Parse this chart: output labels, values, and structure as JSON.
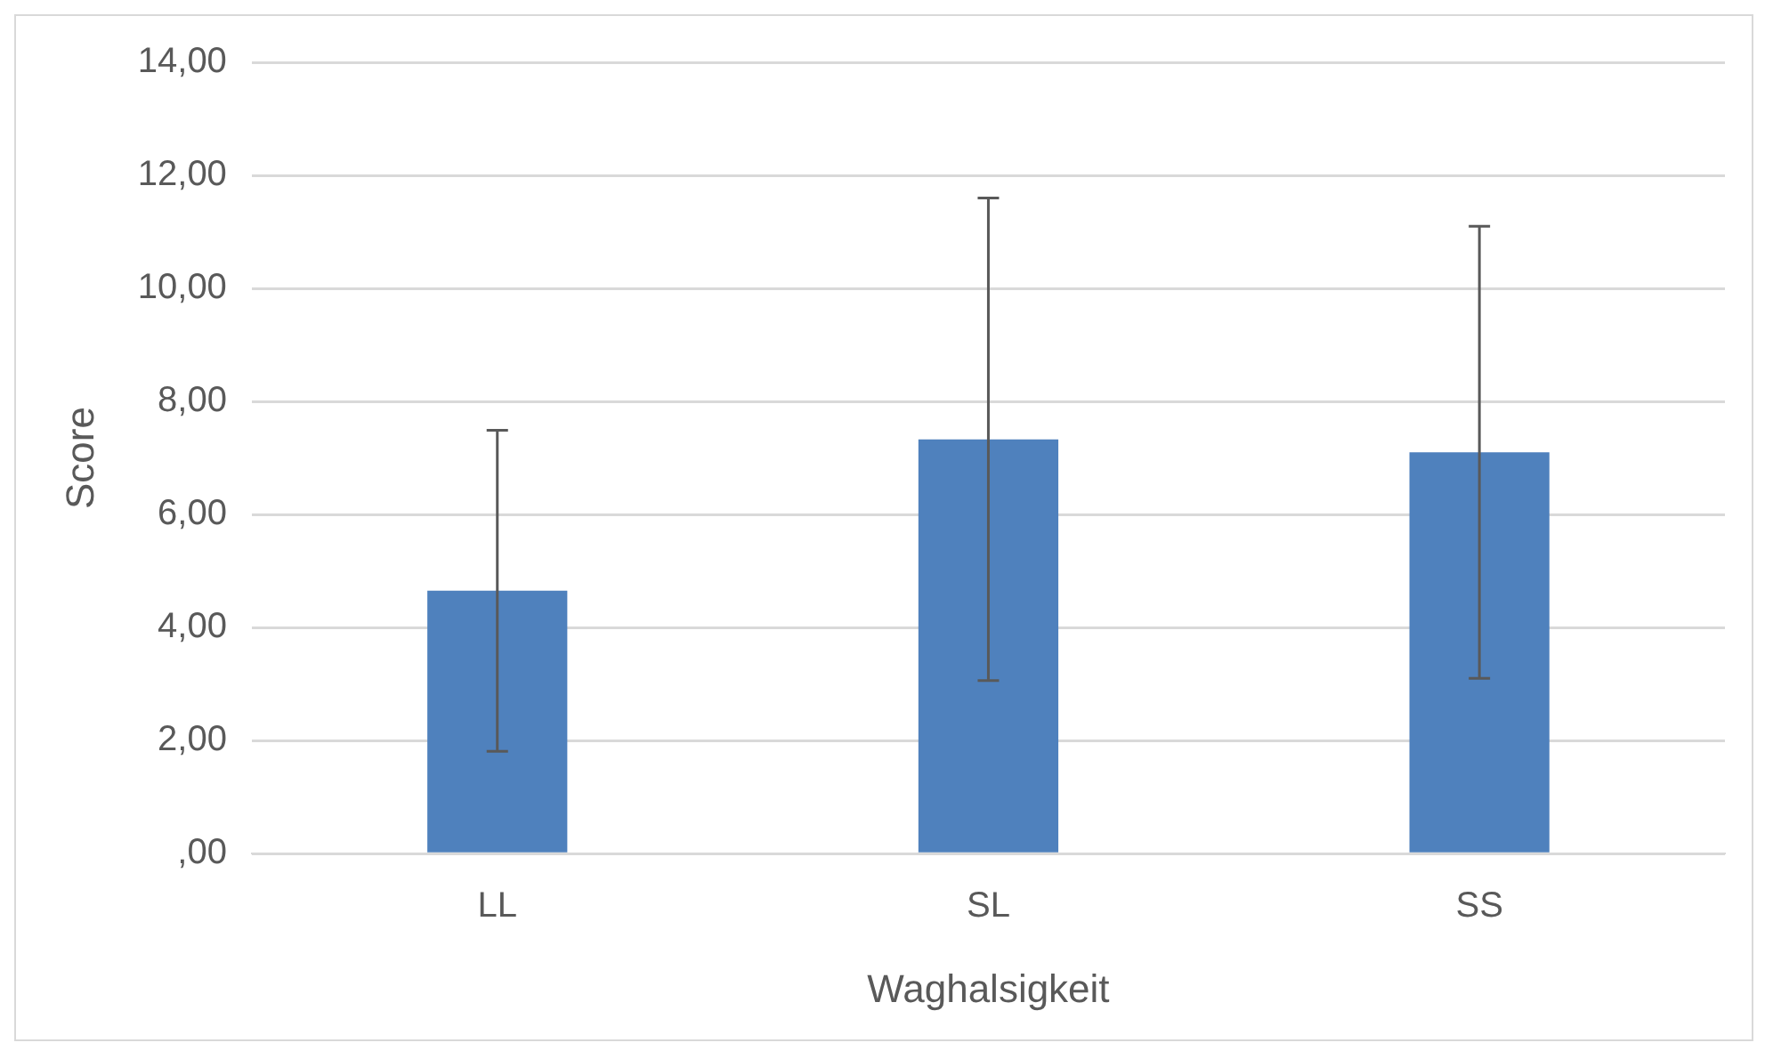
{
  "chart_data": {
    "type": "bar",
    "xlabel": "Waghalsigkeit",
    "ylabel": "Score",
    "categories": [
      "LL",
      "SL",
      "SS"
    ],
    "values": [
      4.65,
      7.33,
      7.1
    ],
    "errors": [
      2.84,
      4.27,
      4.0
    ],
    "color": "#4f81bd",
    "ylim": [
      0,
      14
    ],
    "yticks": [
      {
        "value": 0,
        "label": ",00"
      },
      {
        "value": 2,
        "label": "2,00"
      },
      {
        "value": 4,
        "label": "4,00"
      },
      {
        "value": 6,
        "label": "6,00"
      },
      {
        "value": 8,
        "label": "8,00"
      },
      {
        "value": 10,
        "label": "10,00"
      },
      {
        "value": 12,
        "label": "12,00"
      },
      {
        "value": 14,
        "label": "14,00"
      }
    ],
    "grid": "y",
    "legend": false
  }
}
